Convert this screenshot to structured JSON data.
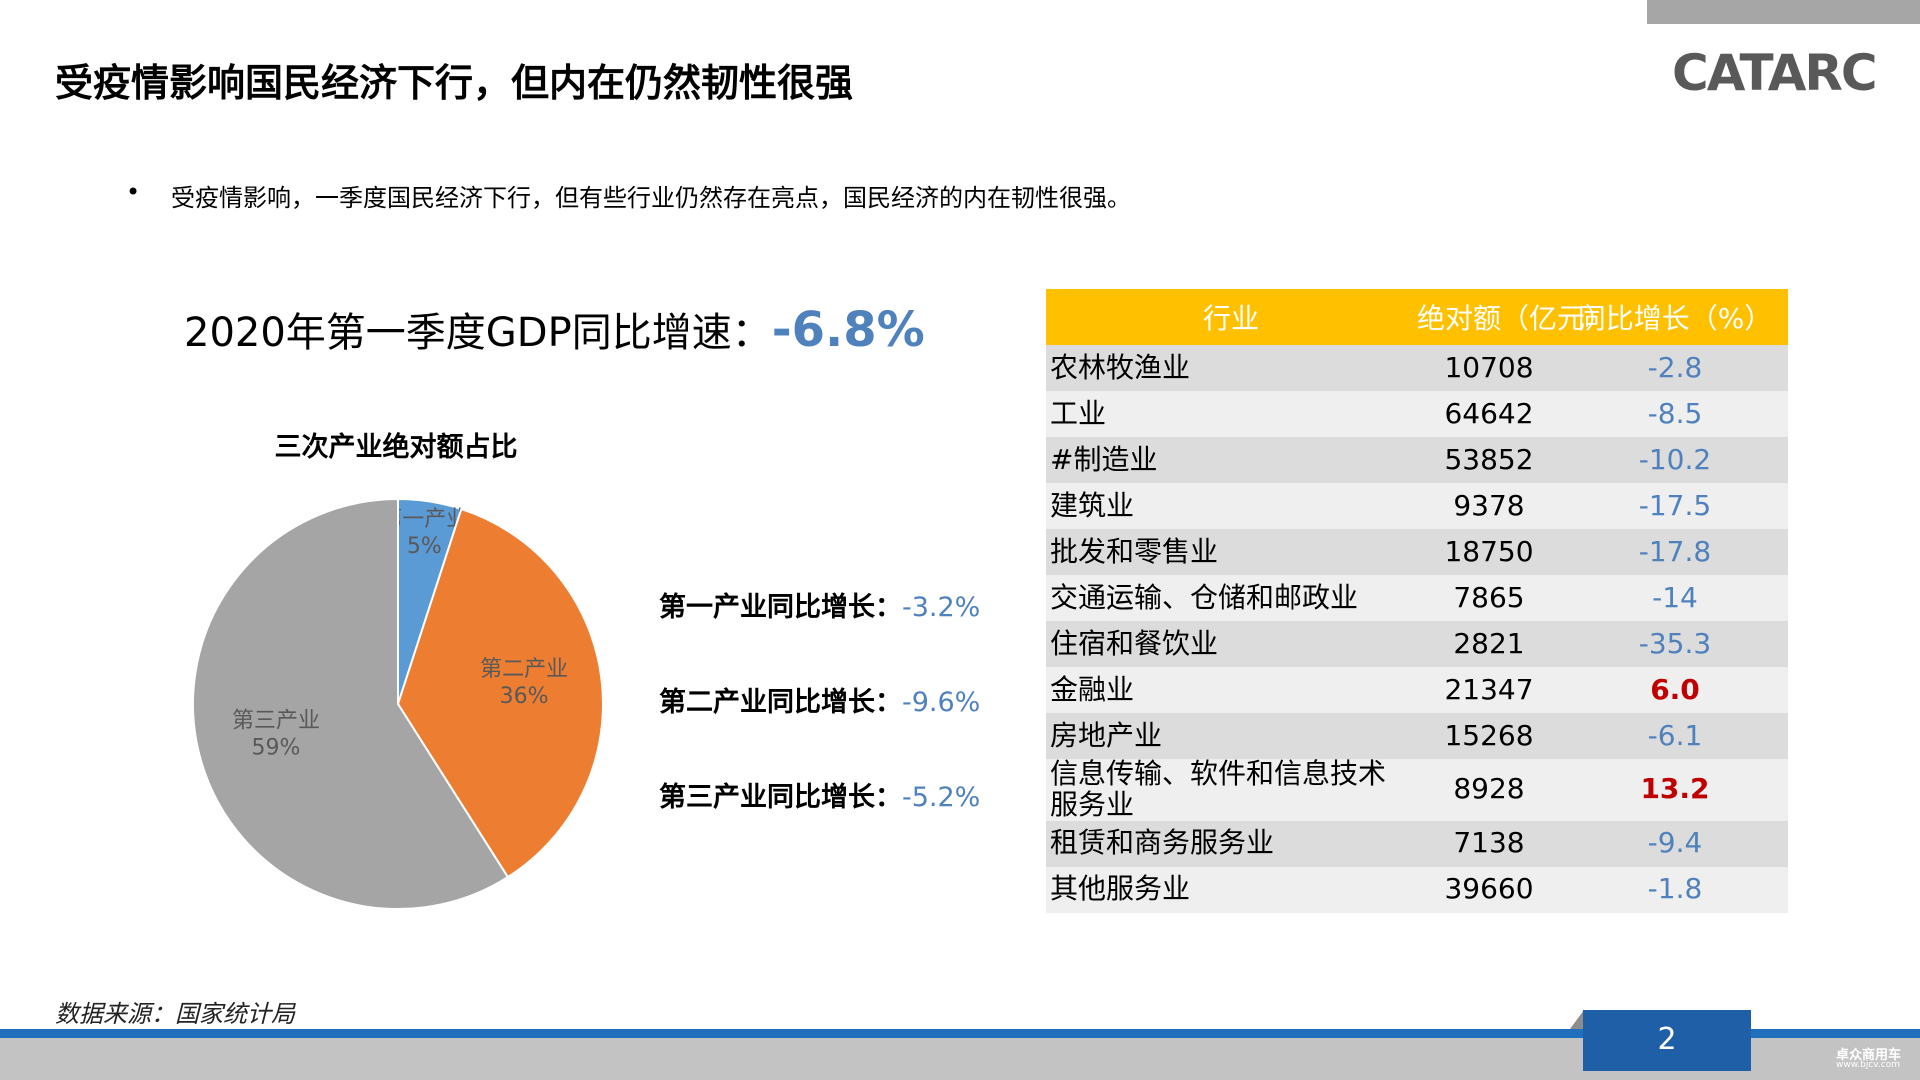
{
  "header": {
    "title": "受疫情影响国民经济下行，但内在仍然韧性很强",
    "logo": "CATARC"
  },
  "bullet": "受疫情影响，一季度国民经济下行，但有些行业仍然存在亮点，国民经济的内在韧性很强。",
  "gdp": {
    "label": "2020年第一季度GDP同比增速：",
    "value": "-6.8%"
  },
  "chart_data": {
    "type": "pie",
    "title": "三次产业绝对额占比",
    "categories": [
      "第一产业",
      "第二产业",
      "第三产业"
    ],
    "values": [
      5,
      36,
      59
    ],
    "value_labels": [
      "5%",
      "36%",
      "59%"
    ],
    "colors": [
      "#5b9bd5",
      "#ed7d31",
      "#a5a5a5"
    ]
  },
  "growth": [
    {
      "label": "第一产业同比增长：",
      "value": "-3.2%"
    },
    {
      "label": "第二产业同比增长：",
      "value": "-9.6%"
    },
    {
      "label": "第三产业同比增长：",
      "value": "-5.2%"
    }
  ],
  "table": {
    "header": [
      "行业",
      "绝对额（亿元）",
      "同比增长（%）"
    ],
    "rows": [
      [
        "农林牧渔业",
        "10708",
        "-2.8"
      ],
      [
        "工业",
        "64642",
        "-8.5"
      ],
      [
        "#制造业",
        "53852",
        "-10.2"
      ],
      [
        "建筑业",
        "9378",
        "-17.5"
      ],
      [
        "批发和零售业",
        "18750",
        "-17.8"
      ],
      [
        "交通运输、仓储和邮政业",
        "7865",
        "-14"
      ],
      [
        "住宿和餐饮业",
        "2821",
        "-35.3"
      ],
      [
        "金融业",
        "21347",
        "6.0"
      ],
      [
        "房地产业",
        "15268",
        "-6.1"
      ],
      [
        "信息传输、软件和信息技术服务业",
        "8928",
        "13.2"
      ],
      [
        "租赁和商务服务业",
        "7138",
        "-9.4"
      ],
      [
        "其他服务业",
        "39660",
        "-1.8"
      ]
    ]
  },
  "source": "数据来源：国家统计局",
  "page_number": "2",
  "watermark": {
    "name": "卓众商用车",
    "url": "www.bjcv.com"
  }
}
